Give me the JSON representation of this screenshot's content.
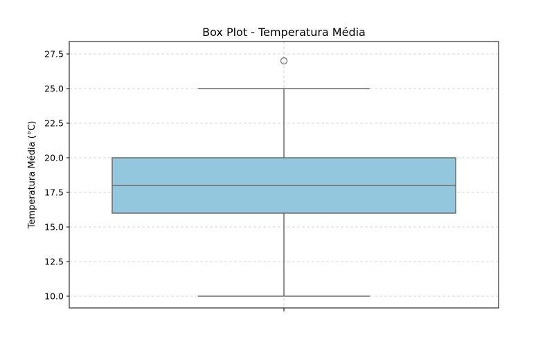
{
  "chart_data": {
    "type": "box",
    "title": "Box Plot - Temperatura Média",
    "xlabel": "",
    "ylabel": "Temperatura Média (°C)",
    "ylim": [
      9.15,
      28.4
    ],
    "yticks": [
      10.0,
      12.5,
      15.0,
      17.5,
      20.0,
      22.5,
      25.0,
      27.5
    ],
    "ytick_labels": [
      "10.0",
      "12.5",
      "15.0",
      "17.5",
      "20.0",
      "22.5",
      "25.0",
      "27.5"
    ],
    "grid": true,
    "box": {
      "whisker_low": 10.0,
      "q1": 16.0,
      "median": 18.0,
      "q3": 20.0,
      "whisker_high": 25.0,
      "outliers": [
        27.0
      ]
    },
    "colors": {
      "box_fill": "#92c7de",
      "line": "#6b6b6b",
      "grid": "#c8c8c8"
    }
  }
}
